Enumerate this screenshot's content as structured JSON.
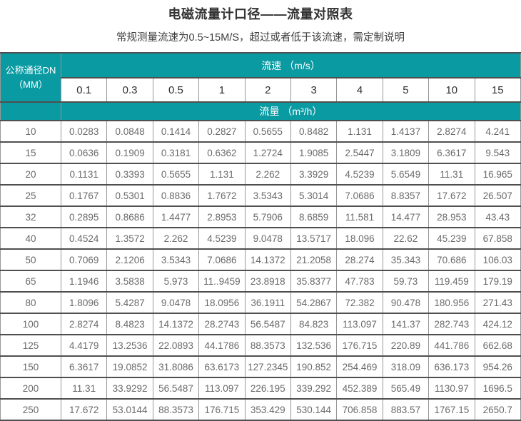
{
  "page": {
    "title": "电磁流量计口径——流量对照表",
    "subtitle": "常规测量流速为0.5~15M/S，超过或者低于该流速，需定制说明"
  },
  "colors": {
    "teal": "#0a9aa2",
    "grid_dark": "#4f4f4f",
    "grid_light": "#979797"
  },
  "table": {
    "corner_line1": "公称通径DN",
    "corner_line2": "（MM）",
    "velocity_header": "流速 （m/s）",
    "flow_header": "流量 （m³/h）",
    "velocities": [
      "0.1",
      "0.3",
      "0.5",
      "1",
      "2",
      "3",
      "4",
      "5",
      "10",
      "15"
    ],
    "rows": [
      {
        "dn": "10",
        "values": [
          "0.0283",
          "0.0848",
          "0.1414",
          "0.2827",
          "0.5655",
          "0.8482",
          "1.131",
          "1.4137",
          "2.8274",
          "4.241"
        ]
      },
      {
        "dn": "15",
        "values": [
          "0.0636",
          "0.1909",
          "0.3181",
          "0.6362",
          "1.2724",
          "1.9085",
          "2.5447",
          "3.1809",
          "6.3617",
          "9.543"
        ]
      },
      {
        "dn": "20",
        "values": [
          "0.1131",
          "0.3393",
          "0.5655",
          "1.131",
          "2.262",
          "3.3929",
          "4.5239",
          "5.6549",
          "11.31",
          "16.965"
        ]
      },
      {
        "dn": "25",
        "values": [
          "0.1767",
          "0.5301",
          "0.8836",
          "1.7672",
          "3.5343",
          "5.3014",
          "7.0686",
          "8.8357",
          "17.672",
          "26.507"
        ]
      },
      {
        "dn": "32",
        "values": [
          "0.2895",
          "0.8686",
          "1.4477",
          "2.8953",
          "5.7906",
          "8.6859",
          "11.581",
          "14.477",
          "28.953",
          "43.43"
        ]
      },
      {
        "dn": "40",
        "values": [
          "0.4524",
          "1.3572",
          "2.262",
          "4.5239",
          "9.0478",
          "13.5717",
          "18.096",
          "22.62",
          "45.239",
          "67.858"
        ]
      },
      {
        "dn": "50",
        "values": [
          "0.7069",
          "2.1206",
          "3.5343",
          "7.0686",
          "14.1372",
          "21.2058",
          "28.274",
          "35.343",
          "70.686",
          "106.03"
        ]
      },
      {
        "dn": "65",
        "values": [
          "1.1946",
          "3.5838",
          "5.973",
          "11..9459",
          "23.8918",
          "35.8377",
          "47.783",
          "59.73",
          "119.459",
          "179.19"
        ]
      },
      {
        "dn": "80",
        "values": [
          "1.8096",
          "5.4287",
          "9.0478",
          "18.0956",
          "36.1911",
          "54.2867",
          "72.382",
          "90.478",
          "180.956",
          "271.43"
        ]
      },
      {
        "dn": "100",
        "values": [
          "2.8274",
          "8.4823",
          "14.1372",
          "28.2743",
          "56.5487",
          "84.823",
          "113.097",
          "141.37",
          "282.743",
          "424.12"
        ]
      },
      {
        "dn": "125",
        "values": [
          "4.4179",
          "13.2536",
          "22.0893",
          "44.1786",
          "88.3573",
          "132.536",
          "176.715",
          "220.89",
          "441.786",
          "662.68"
        ]
      },
      {
        "dn": "150",
        "values": [
          "6.3617",
          "19.0852",
          "31.8086",
          "63.6173",
          "127.2345",
          "190.852",
          "254.469",
          "318.09",
          "636.173",
          "954.26"
        ]
      },
      {
        "dn": "200",
        "values": [
          "11.31",
          "33.9292",
          "56.5487",
          "113.097",
          "226.195",
          "339.292",
          "452.389",
          "565.49",
          "1130.97",
          "1696.5"
        ]
      },
      {
        "dn": "250",
        "values": [
          "17.672",
          "53.0144",
          "88.3573",
          "176.715",
          "353.429",
          "530.144",
          "706.858",
          "883.57",
          "1767.15",
          "2650.7"
        ]
      }
    ]
  }
}
